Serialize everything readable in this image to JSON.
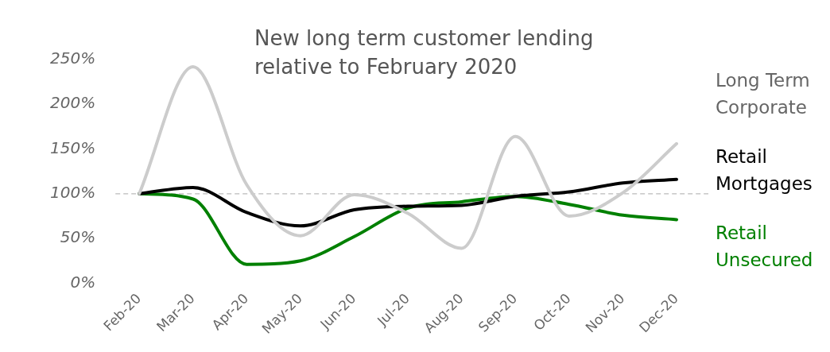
{
  "chart_data": {
    "type": "line",
    "title": "New long term customer lending relative to February 2020",
    "categories": [
      "Feb-20",
      "Mar-20",
      "Apr-20",
      "May-20",
      "Jun-20",
      "Jul-20",
      "Aug-20",
      "Sep-20",
      "Oct-20",
      "Nov-20",
      "Dec-20"
    ],
    "series": [
      {
        "name": "Long Term Corporate",
        "color": "#cccccc",
        "values": [
          100,
          242,
          110,
          53,
          99,
          78,
          39,
          164,
          75,
          101,
          156
        ]
      },
      {
        "name": "Retail Mortgages",
        "color": "#000000",
        "values": [
          100,
          107,
          79,
          64,
          82,
          86,
          87,
          97,
          102,
          112,
          116
        ]
      },
      {
        "name": "Retail Unsecured",
        "color": "#008000",
        "values": [
          100,
          94,
          21,
          25,
          52,
          84,
          91,
          97,
          88,
          76,
          71
        ]
      }
    ],
    "ylim": [
      0,
      250
    ],
    "yticks": [
      {
        "value": 0,
        "label": "0%"
      },
      {
        "value": 50,
        "label": "50%"
      },
      {
        "value": 100,
        "label": "100%"
      },
      {
        "value": 150,
        "label": "150%"
      },
      {
        "value": 200,
        "label": "200%"
      },
      {
        "value": 250,
        "label": "250%"
      }
    ],
    "ref_lines": [
      {
        "axis": "y",
        "value": 100,
        "color": "#bbbbbb",
        "line_style": "dashed"
      }
    ],
    "grid": false,
    "legend": "right",
    "marker": "none",
    "line_style": "solid"
  }
}
